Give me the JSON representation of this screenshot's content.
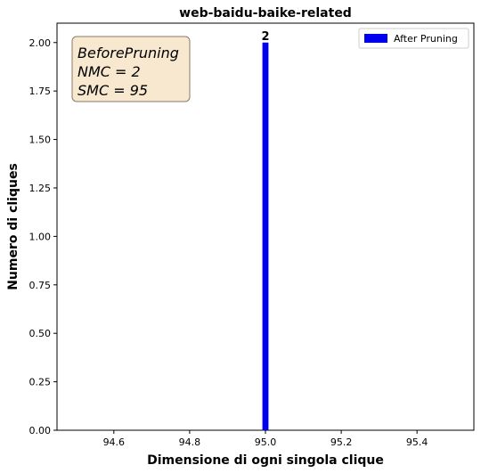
{
  "chart_data": {
    "type": "bar",
    "title": "web-baidu-baike-related",
    "xlabel": "Dimensione di ogni singola clique",
    "ylabel": "Numero di cliques",
    "xlim": [
      94.45,
      95.55
    ],
    "ylim": [
      0,
      2.1
    ],
    "x_ticks": [
      94.6,
      94.8,
      95.0,
      95.2,
      95.4
    ],
    "x_tick_labels": [
      "94.6",
      "94.8",
      "95.0",
      "95.2",
      "95.4"
    ],
    "y_ticks": [
      0,
      0.25,
      0.5,
      0.75,
      1.0,
      1.25,
      1.5,
      1.75,
      2.0
    ],
    "y_tick_labels": [
      "0.00",
      "0.25",
      "0.50",
      "0.75",
      "1.00",
      "1.25",
      "1.50",
      "1.75",
      "2.00"
    ],
    "grid": false,
    "legend_position": "top-right",
    "series": [
      {
        "name": "After Pruning",
        "color": "#0000ee",
        "x": [
          95.0
        ],
        "values": [
          2
        ],
        "bar_width": 0.016,
        "data_labels": [
          "2"
        ]
      }
    ],
    "annotation": {
      "lines": [
        "BeforePruning",
        "NMC = 2",
        "SMC = 95"
      ],
      "box_fill": "#f7e8cf",
      "box_edge": "#8a7a6a"
    }
  }
}
